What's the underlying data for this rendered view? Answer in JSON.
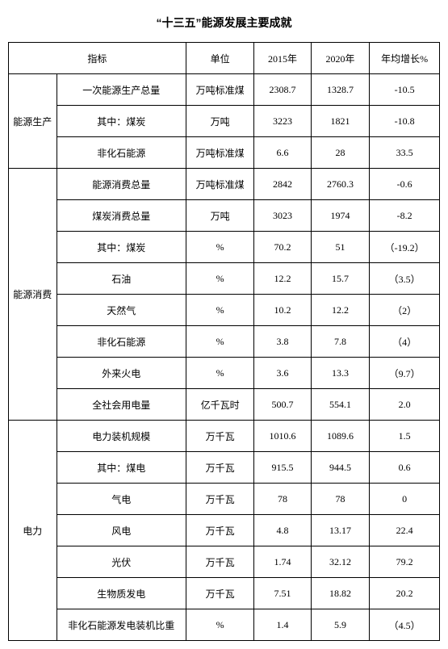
{
  "title": "“十三五”能源发展主要成就",
  "headers": {
    "indicator": "指标",
    "unit": "单位",
    "y2015": "2015年",
    "y2020": "2020年",
    "growth": "年均增长%"
  },
  "groups": [
    {
      "name": "能源生产",
      "rows": [
        {
          "ind": "一次能源生产总量",
          "unit": "万吨标准煤",
          "y2015": "2308.7",
          "y2020": "1328.7",
          "growth": "-10.5"
        },
        {
          "ind": "其中：煤炭",
          "unit": "万吨",
          "y2015": "3223",
          "y2020": "1821",
          "growth": "-10.8"
        },
        {
          "ind": "非化石能源",
          "unit": "万吨标准煤",
          "y2015": "6.6",
          "y2020": "28",
          "growth": "33.5"
        }
      ]
    },
    {
      "name": "能源消费",
      "rows": [
        {
          "ind": "能源消费总量",
          "unit": "万吨标准煤",
          "y2015": "2842",
          "y2020": "2760.3",
          "growth": "-0.6"
        },
        {
          "ind": "煤炭消费总量",
          "unit": "万吨",
          "y2015": "3023",
          "y2020": "1974",
          "growth": "-8.2"
        },
        {
          "ind": "其中：煤炭",
          "unit": "%",
          "y2015": "70.2",
          "y2020": "51",
          "growth": "（-19.2）"
        },
        {
          "ind": "石油",
          "unit": "%",
          "y2015": "12.2",
          "y2020": "15.7",
          "growth": "（3.5）"
        },
        {
          "ind": "天然气",
          "unit": "%",
          "y2015": "10.2",
          "y2020": "12.2",
          "growth": "（2）"
        },
        {
          "ind": "非化石能源",
          "unit": "%",
          "y2015": "3.8",
          "y2020": "7.8",
          "growth": "（4）"
        },
        {
          "ind": "外来火电",
          "unit": "%",
          "y2015": "3.6",
          "y2020": "13.3",
          "growth": "（9.7）"
        },
        {
          "ind": "全社会用电量",
          "unit": "亿千瓦时",
          "y2015": "500.7",
          "y2020": "554.1",
          "growth": "2.0"
        }
      ]
    },
    {
      "name": "电力",
      "rows": [
        {
          "ind": "电力装机规模",
          "unit": "万千瓦",
          "y2015": "1010.6",
          "y2020": "1089.6",
          "growth": "1.5"
        },
        {
          "ind": "其中：煤电",
          "unit": "万千瓦",
          "y2015": "915.5",
          "y2020": "944.5",
          "growth": "0.6"
        },
        {
          "ind": "气电",
          "unit": "万千瓦",
          "y2015": "78",
          "y2020": "78",
          "growth": "0"
        },
        {
          "ind": "风电",
          "unit": "万千瓦",
          "y2015": "4.8",
          "y2020": "13.17",
          "growth": "22.4"
        },
        {
          "ind": "光伏",
          "unit": "万千瓦",
          "y2015": "1.74",
          "y2020": "32.12",
          "growth": "79.2"
        },
        {
          "ind": "生物质发电",
          "unit": "万千瓦",
          "y2015": "7.51",
          "y2020": "18.82",
          "growth": "20.2"
        },
        {
          "ind": "非化石能源发电装机比重",
          "unit": "%",
          "y2015": "1.4",
          "y2020": "5.9",
          "growth": "（4.5）"
        }
      ]
    }
  ]
}
